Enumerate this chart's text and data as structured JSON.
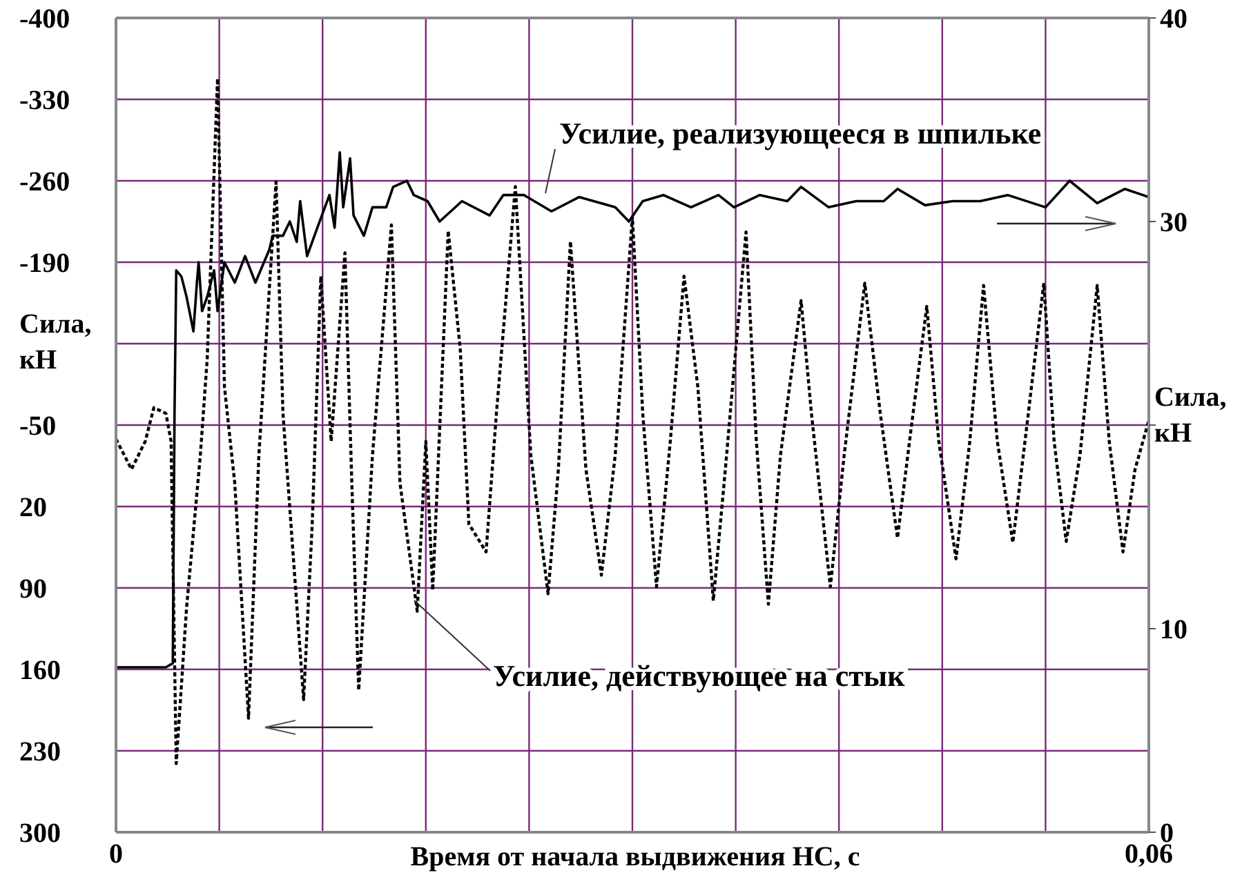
{
  "chart_data": {
    "type": "line",
    "xlabel": "Время от начала выдвижения НС, с",
    "ylabel": "Сила, кН",
    "y2label": "Сила, кН",
    "xlim": [
      0,
      0.06
    ],
    "xticks": [
      0,
      {
        "value": 0.006,
        "label": null
      },
      {
        "value": 0.012,
        "label": null
      },
      {
        "value": 0.018,
        "label": null
      },
      {
        "value": 0.024,
        "label": null
      },
      {
        "value": 0.03,
        "label": null
      },
      {
        "value": 0.036,
        "label": null
      },
      {
        "value": 0.042,
        "label": null
      },
      {
        "value": 0.048,
        "label": null
      },
      {
        "value": 0.054,
        "label": null
      },
      {
        "value": 0.06,
        "label": "0,06"
      }
    ],
    "ylim": [
      300,
      -400
    ],
    "yticks": [
      -400,
      -330,
      -260,
      -190,
      {
        "value": -120,
        "label": null
      },
      -50,
      20,
      90,
      160,
      230,
      300
    ],
    "y2lim": [
      0,
      40
    ],
    "y2ticks": [
      0,
      10,
      {
        "value": 20,
        "label": null
      },
      30,
      40
    ],
    "grid": true,
    "marker": "none",
    "series": [
      {
        "name": "Усилие, реализующееся в шпильке",
        "color": "#000000",
        "axis": "y2",
        "line_style": "solid",
        "x": [
          0,
          0.0029,
          0.0033,
          0.0034,
          0.0035,
          0.0038,
          0.0041,
          0.0045,
          0.0047,
          0.0048,
          0.005,
          0.0053,
          0.0057,
          0.0059,
          0.0063,
          0.0069,
          0.0075,
          0.0081,
          0.0089,
          0.0091,
          0.0097,
          0.0101,
          0.0105,
          0.0107,
          0.0111,
          0.0117,
          0.0124,
          0.0127,
          0.013,
          0.0132,
          0.0136,
          0.0138,
          0.0144,
          0.0149,
          0.0157,
          0.0161,
          0.0169,
          0.0173,
          0.0181,
          0.0188,
          0.0201,
          0.0217,
          0.0225,
          0.0237,
          0.0253,
          0.0269,
          0.029,
          0.0298,
          0.0306,
          0.0318,
          0.0334,
          0.035,
          0.0359,
          0.0374,
          0.039,
          0.0398,
          0.0414,
          0.043,
          0.0446,
          0.0454,
          0.047,
          0.0486,
          0.0502,
          0.0518,
          0.054,
          0.0554,
          0.057,
          0.0586,
          0.06
        ],
        "values": [
          8.1,
          8.1,
          8.3,
          20.5,
          27.6,
          27.3,
          26.3,
          24.6,
          27.0,
          28.0,
          25.6,
          26.3,
          27.6,
          25.6,
          28.0,
          27.0,
          28.3,
          27.0,
          28.6,
          29.3,
          29.3,
          30.0,
          29.0,
          31.0,
          28.3,
          29.7,
          31.3,
          29.7,
          33.4,
          30.7,
          33.1,
          30.3,
          29.3,
          30.7,
          30.7,
          31.7,
          32.0,
          31.3,
          31.0,
          30.0,
          31.0,
          30.3,
          31.3,
          31.3,
          30.5,
          31.2,
          30.7,
          30.0,
          31.0,
          31.3,
          30.7,
          31.3,
          30.7,
          31.3,
          31.0,
          31.7,
          30.7,
          31.0,
          31.0,
          31.6,
          30.8,
          31.0,
          31.0,
          31.3,
          30.7,
          32.0,
          30.9,
          31.6,
          31.2
        ]
      },
      {
        "name": "Усилие, действующее на стык",
        "color": "#000000",
        "axis": "y",
        "line_style": "dotted",
        "x": [
          0,
          0.0009,
          0.0017,
          0.0022,
          0.0029,
          0.0032,
          0.0035,
          0.0041,
          0.0049,
          0.0053,
          0.0059,
          0.0063,
          0.0069,
          0.0077,
          0.0083,
          0.0093,
          0.0097,
          0.0109,
          0.0114,
          0.0119,
          0.0125,
          0.0133,
          0.0137,
          0.0141,
          0.0149,
          0.016,
          0.0165,
          0.0175,
          0.018,
          0.0184,
          0.0193,
          0.02,
          0.0205,
          0.0215,
          0.0221,
          0.0232,
          0.0241,
          0.0251,
          0.0257,
          0.0264,
          0.0273,
          0.0282,
          0.029,
          0.03,
          0.0306,
          0.0314,
          0.0322,
          0.033,
          0.0338,
          0.0347,
          0.0354,
          0.0366,
          0.0372,
          0.0379,
          0.0386,
          0.0398,
          0.0404,
          0.0415,
          0.0423,
          0.0435,
          0.0444,
          0.0454,
          0.0462,
          0.0471,
          0.0478,
          0.0488,
          0.0496,
          0.0504,
          0.0512,
          0.0521,
          0.053,
          0.0539,
          0.0545,
          0.0552,
          0.056,
          0.057,
          0.0577,
          0.0585,
          0.0592,
          0.06
        ],
        "values": [
          -38,
          -12,
          -36,
          -65,
          -60,
          -36,
          241,
          107,
          -24,
          -107,
          -348,
          -83,
          0,
          202,
          -24,
          -259,
          -60,
          186,
          35,
          -178,
          -36,
          -198,
          0,
          178,
          -24,
          -222,
          0,
          110,
          -36,
          92,
          -217,
          -115,
          35,
          59,
          -60,
          -255,
          -24,
          95,
          -12,
          -208,
          -12,
          79,
          -24,
          -229,
          -60,
          89,
          -36,
          -178,
          -83,
          101,
          -12,
          -216,
          -36,
          104,
          -24,
          -157,
          -60,
          89,
          -24,
          -172,
          -60,
          47,
          -48,
          -152,
          -36,
          65,
          -36,
          -170,
          -36,
          51,
          -60,
          -172,
          -36,
          50,
          -24,
          -170,
          -36,
          59,
          -12,
          -54
        ]
      }
    ]
  }
}
